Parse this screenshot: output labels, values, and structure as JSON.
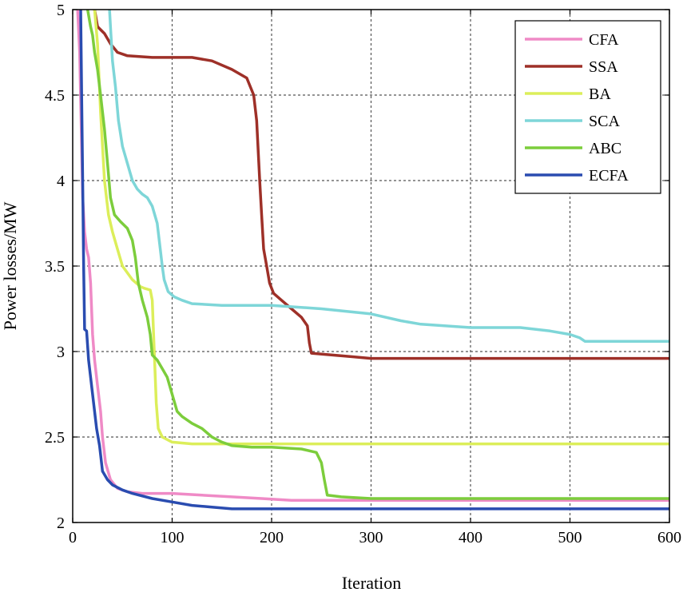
{
  "chart_data": {
    "type": "line",
    "title": "",
    "xlabel": "Iteration",
    "ylabel": "Power losses/MW",
    "xlim": [
      0,
      600
    ],
    "ylim": [
      2,
      5
    ],
    "xticks": [
      0,
      100,
      200,
      300,
      400,
      500,
      600
    ],
    "yticks": [
      2,
      2.5,
      3,
      3.5,
      4,
      4.5,
      5
    ],
    "xtick_labels": [
      "0",
      "100",
      "200",
      "300",
      "400",
      "500",
      "600"
    ],
    "ytick_labels": [
      "2",
      "2.5",
      "3",
      "3.5",
      "4",
      "4.5",
      "5"
    ],
    "grid": true,
    "legend_position": "top-right",
    "series": [
      {
        "name": "CFA",
        "color": "#ef8ac6",
        "points": [
          [
            5,
            5.0
          ],
          [
            7,
            4.75
          ],
          [
            9,
            4.2
          ],
          [
            10,
            3.9
          ],
          [
            12,
            3.7
          ],
          [
            14,
            3.6
          ],
          [
            16,
            3.55
          ],
          [
            18,
            3.4
          ],
          [
            20,
            3.1
          ],
          [
            22,
            2.95
          ],
          [
            25,
            2.8
          ],
          [
            28,
            2.65
          ],
          [
            30,
            2.5
          ],
          [
            33,
            2.35
          ],
          [
            38,
            2.25
          ],
          [
            45,
            2.2
          ],
          [
            55,
            2.18
          ],
          [
            70,
            2.17
          ],
          [
            100,
            2.17
          ],
          [
            130,
            2.16
          ],
          [
            160,
            2.15
          ],
          [
            190,
            2.14
          ],
          [
            220,
            2.13
          ],
          [
            300,
            2.13
          ],
          [
            600,
            2.13
          ]
        ]
      },
      {
        "name": "SSA",
        "color": "#9e3028",
        "points": [
          [
            22,
            5.0
          ],
          [
            25,
            4.9
          ],
          [
            32,
            4.86
          ],
          [
            38,
            4.8
          ],
          [
            45,
            4.75
          ],
          [
            55,
            4.73
          ],
          [
            80,
            4.72
          ],
          [
            120,
            4.72
          ],
          [
            140,
            4.7
          ],
          [
            160,
            4.65
          ],
          [
            175,
            4.6
          ],
          [
            182,
            4.5
          ],
          [
            185,
            4.35
          ],
          [
            188,
            4.0
          ],
          [
            190,
            3.8
          ],
          [
            192,
            3.6
          ],
          [
            195,
            3.5
          ],
          [
            198,
            3.4
          ],
          [
            202,
            3.34
          ],
          [
            210,
            3.3
          ],
          [
            220,
            3.25
          ],
          [
            230,
            3.2
          ],
          [
            236,
            3.15
          ],
          [
            238,
            3.05
          ],
          [
            240,
            2.99
          ],
          [
            260,
            2.98
          ],
          [
            280,
            2.97
          ],
          [
            300,
            2.96
          ],
          [
            600,
            2.96
          ]
        ]
      },
      {
        "name": "BA",
        "color": "#dcee5a",
        "points": [
          [
            22,
            5.0
          ],
          [
            25,
            4.8
          ],
          [
            28,
            4.4
          ],
          [
            32,
            4.0
          ],
          [
            36,
            3.8
          ],
          [
            40,
            3.7
          ],
          [
            45,
            3.6
          ],
          [
            50,
            3.5
          ],
          [
            60,
            3.42
          ],
          [
            68,
            3.38
          ],
          [
            72,
            3.37
          ],
          [
            78,
            3.36
          ],
          [
            80,
            3.3
          ],
          [
            82,
            3.0
          ],
          [
            84,
            2.7
          ],
          [
            86,
            2.55
          ],
          [
            90,
            2.5
          ],
          [
            100,
            2.47
          ],
          [
            120,
            2.46
          ],
          [
            200,
            2.46
          ],
          [
            600,
            2.46
          ]
        ]
      },
      {
        "name": "SCA",
        "color": "#7ed6d8",
        "points": [
          [
            37,
            5.0
          ],
          [
            38,
            4.9
          ],
          [
            40,
            4.7
          ],
          [
            43,
            4.55
          ],
          [
            46,
            4.35
          ],
          [
            50,
            4.2
          ],
          [
            55,
            4.1
          ],
          [
            60,
            4.0
          ],
          [
            65,
            3.95
          ],
          [
            70,
            3.92
          ],
          [
            75,
            3.9
          ],
          [
            80,
            3.85
          ],
          [
            85,
            3.75
          ],
          [
            88,
            3.6
          ],
          [
            90,
            3.5
          ],
          [
            92,
            3.42
          ],
          [
            96,
            3.35
          ],
          [
            102,
            3.32
          ],
          [
            110,
            3.3
          ],
          [
            120,
            3.28
          ],
          [
            150,
            3.27
          ],
          [
            200,
            3.27
          ],
          [
            250,
            3.25
          ],
          [
            300,
            3.22
          ],
          [
            330,
            3.18
          ],
          [
            350,
            3.16
          ],
          [
            400,
            3.14
          ],
          [
            450,
            3.14
          ],
          [
            480,
            3.12
          ],
          [
            500,
            3.1
          ],
          [
            510,
            3.08
          ],
          [
            515,
            3.06
          ],
          [
            600,
            3.06
          ]
        ]
      },
      {
        "name": "ABC",
        "color": "#7ccd3c",
        "points": [
          [
            15,
            5.0
          ],
          [
            18,
            4.9
          ],
          [
            20,
            4.85
          ],
          [
            22,
            4.75
          ],
          [
            25,
            4.65
          ],
          [
            28,
            4.5
          ],
          [
            32,
            4.3
          ],
          [
            35,
            4.1
          ],
          [
            38,
            3.9
          ],
          [
            42,
            3.8
          ],
          [
            48,
            3.76
          ],
          [
            55,
            3.72
          ],
          [
            60,
            3.65
          ],
          [
            63,
            3.55
          ],
          [
            66,
            3.4
          ],
          [
            70,
            3.3
          ],
          [
            75,
            3.2
          ],
          [
            78,
            3.1
          ],
          [
            80,
            2.98
          ],
          [
            85,
            2.95
          ],
          [
            90,
            2.9
          ],
          [
            95,
            2.85
          ],
          [
            100,
            2.75
          ],
          [
            105,
            2.65
          ],
          [
            110,
            2.62
          ],
          [
            120,
            2.58
          ],
          [
            130,
            2.55
          ],
          [
            140,
            2.5
          ],
          [
            150,
            2.47
          ],
          [
            160,
            2.45
          ],
          [
            180,
            2.44
          ],
          [
            200,
            2.44
          ],
          [
            230,
            2.43
          ],
          [
            245,
            2.41
          ],
          [
            250,
            2.35
          ],
          [
            253,
            2.25
          ],
          [
            256,
            2.16
          ],
          [
            270,
            2.15
          ],
          [
            300,
            2.14
          ],
          [
            600,
            2.14
          ]
        ]
      },
      {
        "name": "ECFA",
        "color": "#2a4cb0",
        "points": [
          [
            8,
            5.0
          ],
          [
            9,
            4.5
          ],
          [
            10,
            4.0
          ],
          [
            11,
            3.5
          ],
          [
            12,
            3.13
          ],
          [
            14,
            3.12
          ],
          [
            16,
            2.95
          ],
          [
            18,
            2.85
          ],
          [
            20,
            2.75
          ],
          [
            22,
            2.65
          ],
          [
            24,
            2.55
          ],
          [
            27,
            2.45
          ],
          [
            30,
            2.3
          ],
          [
            35,
            2.25
          ],
          [
            40,
            2.22
          ],
          [
            50,
            2.19
          ],
          [
            60,
            2.17
          ],
          [
            80,
            2.14
          ],
          [
            100,
            2.12
          ],
          [
            120,
            2.1
          ],
          [
            140,
            2.09
          ],
          [
            160,
            2.08
          ],
          [
            200,
            2.08
          ],
          [
            300,
            2.08
          ],
          [
            600,
            2.08
          ]
        ]
      }
    ]
  }
}
